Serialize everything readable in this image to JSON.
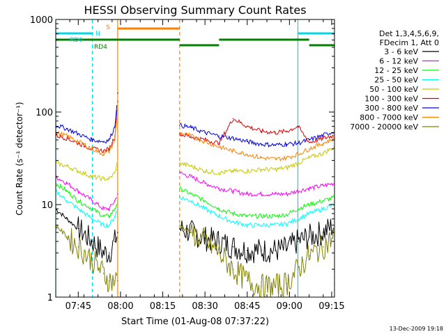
{
  "chart_data": {
    "type": "line",
    "title": "HESSI Observing Summary Count Rates",
    "xlabel": "Start Time (01-Aug-08 07:37:22)",
    "ylabel": "Count Rate (s⁻¹ detector⁻¹)",
    "yscale": "log",
    "ylim": [
      1,
      1000
    ],
    "xlim_minutes_after_0737": [
      0,
      99
    ],
    "x_ticks": [
      {
        "label": "07:45",
        "minutes_after_0737": 8
      },
      {
        "label": "08:00",
        "minutes_after_0737": 23
      },
      {
        "label": "08:15",
        "minutes_after_0737": 38
      },
      {
        "label": "08:30",
        "minutes_after_0737": 53
      },
      {
        "label": "08:45",
        "minutes_after_0737": 68
      },
      {
        "label": "09:00",
        "minutes_after_0737": 83
      },
      {
        "label": "09:15",
        "minutes_after_0737": 98
      }
    ],
    "y_ticks": [
      {
        "label": "1",
        "value": 1
      },
      {
        "label": "10",
        "value": 10
      },
      {
        "label": "100",
        "value": 100
      },
      {
        "label": "1000",
        "value": 1000
      }
    ],
    "legend_header": [
      "Det 1,3,4,5,6,9,",
      "FDecim 1, Att 0"
    ],
    "legend_placement": "right",
    "footer_date": "13-Dec-2009 19:18",
    "flag_labels": [
      {
        "text": "RD0",
        "color": "#00d8e8"
      },
      {
        "text": "N",
        "color": "#00d8e8"
      },
      {
        "text": "S",
        "color": "#ff8000"
      },
      {
        "text": "RD4",
        "color": "#008000"
      }
    ],
    "gaps_minutes": [
      [
        22,
        44
      ]
    ],
    "series": [
      {
        "name": "3 - 6 keV",
        "color": "#000000",
        "x": [
          0,
          4,
          8,
          13,
          17,
          19,
          21,
          22,
          44,
          48,
          53,
          58,
          63,
          68,
          73,
          78,
          82,
          86,
          90,
          95,
          99
        ],
        "y": [
          9,
          7,
          5.5,
          4,
          3,
          3,
          4,
          5,
          5.5,
          5,
          4.3,
          4,
          3.5,
          3.2,
          3.2,
          3.2,
          3.3,
          4,
          4.5,
          5,
          6
        ]
      },
      {
        "name": "6 - 12 keV",
        "color": "#ff00ff",
        "x": [
          0,
          4,
          8,
          13,
          17,
          19,
          21,
          22,
          44,
          48,
          53,
          58,
          63,
          68,
          73,
          78,
          82,
          86,
          90,
          95,
          99
        ],
        "y": [
          20,
          17,
          14,
          11,
          9,
          9,
          11,
          13,
          22,
          20,
          17,
          15,
          14,
          13,
          13,
          13,
          13,
          14,
          15,
          16,
          17
        ]
      },
      {
        "name": "12 - 25 keV",
        "color": "#00ff00",
        "x": [
          0,
          4,
          8,
          13,
          17,
          19,
          21,
          22,
          44,
          48,
          53,
          58,
          63,
          68,
          73,
          78,
          82,
          86,
          90,
          95,
          99
        ],
        "y": [
          17,
          14,
          11,
          9,
          7.5,
          7.5,
          9,
          11,
          15,
          13,
          11,
          9,
          8,
          7.5,
          7.5,
          7.5,
          7.8,
          9,
          10,
          11,
          12
        ]
      },
      {
        "name": "25 - 50 keV",
        "color": "#00ffff",
        "x": [
          0,
          4,
          8,
          13,
          17,
          19,
          21,
          22,
          44,
          48,
          53,
          58,
          63,
          68,
          73,
          78,
          82,
          86,
          90,
          95,
          99
        ],
        "y": [
          14,
          11,
          9,
          7,
          6,
          6,
          7.5,
          9,
          12,
          11,
          9,
          7.5,
          6.5,
          6,
          6,
          6,
          6.2,
          7,
          8,
          9,
          10
        ]
      },
      {
        "name": "50 - 100 keV",
        "color": "#c8c800",
        "x": [
          0,
          4,
          8,
          13,
          17,
          19,
          21,
          22,
          44,
          48,
          53,
          58,
          63,
          68,
          73,
          78,
          82,
          86,
          90,
          95,
          99
        ],
        "y": [
          28,
          26,
          23,
          20,
          19,
          19,
          22,
          30,
          28,
          26,
          23,
          22,
          23,
          23,
          24,
          24,
          25,
          28,
          32,
          36,
          42
        ]
      },
      {
        "name": "100 - 300 keV",
        "color": "#e00000",
        "x": [
          0,
          4,
          8,
          13,
          17,
          19,
          21,
          22,
          44,
          48,
          53,
          58,
          63,
          68,
          73,
          78,
          82,
          86,
          90,
          95,
          99
        ],
        "y": [
          56,
          52,
          46,
          40,
          38,
          40,
          55,
          130,
          58,
          54,
          50,
          46,
          85,
          70,
          62,
          60,
          62,
          70,
          47,
          52,
          56
        ]
      },
      {
        "name": "300 - 800 keV",
        "color": "#0000e0",
        "x": [
          0,
          4,
          8,
          13,
          17,
          19,
          21,
          22,
          44,
          48,
          53,
          58,
          63,
          68,
          73,
          78,
          82,
          86,
          90,
          95,
          99
        ],
        "y": [
          72,
          66,
          58,
          50,
          48,
          50,
          70,
          160,
          72,
          68,
          60,
          55,
          52,
          48,
          45,
          44,
          45,
          46,
          50,
          56,
          62
        ]
      },
      {
        "name": "800 - 7000 keV",
        "color": "#ff8000",
        "x": [
          0,
          4,
          8,
          13,
          17,
          19,
          21,
          22,
          44,
          48,
          53,
          58,
          63,
          68,
          73,
          78,
          82,
          86,
          90,
          95,
          99
        ],
        "y": [
          60,
          55,
          48,
          40,
          35,
          38,
          50,
          110,
          60,
          55,
          48,
          42,
          38,
          35,
          32,
          31,
          32,
          35,
          40,
          46,
          52
        ]
      },
      {
        "name": "7000 - 20000 keV",
        "color": "#808000",
        "x": [
          0,
          4,
          8,
          13,
          17,
          19,
          21,
          22,
          44,
          48,
          53,
          58,
          63,
          68,
          73,
          78,
          82,
          86,
          90,
          95,
          99
        ],
        "y": [
          6,
          4.5,
          3.5,
          2.5,
          1.8,
          1.5,
          1.5,
          1.5,
          6,
          5,
          4,
          3,
          2,
          1.5,
          1.3,
          1.3,
          1.4,
          2,
          2.8,
          3.5,
          4.5
        ]
      }
    ]
  }
}
